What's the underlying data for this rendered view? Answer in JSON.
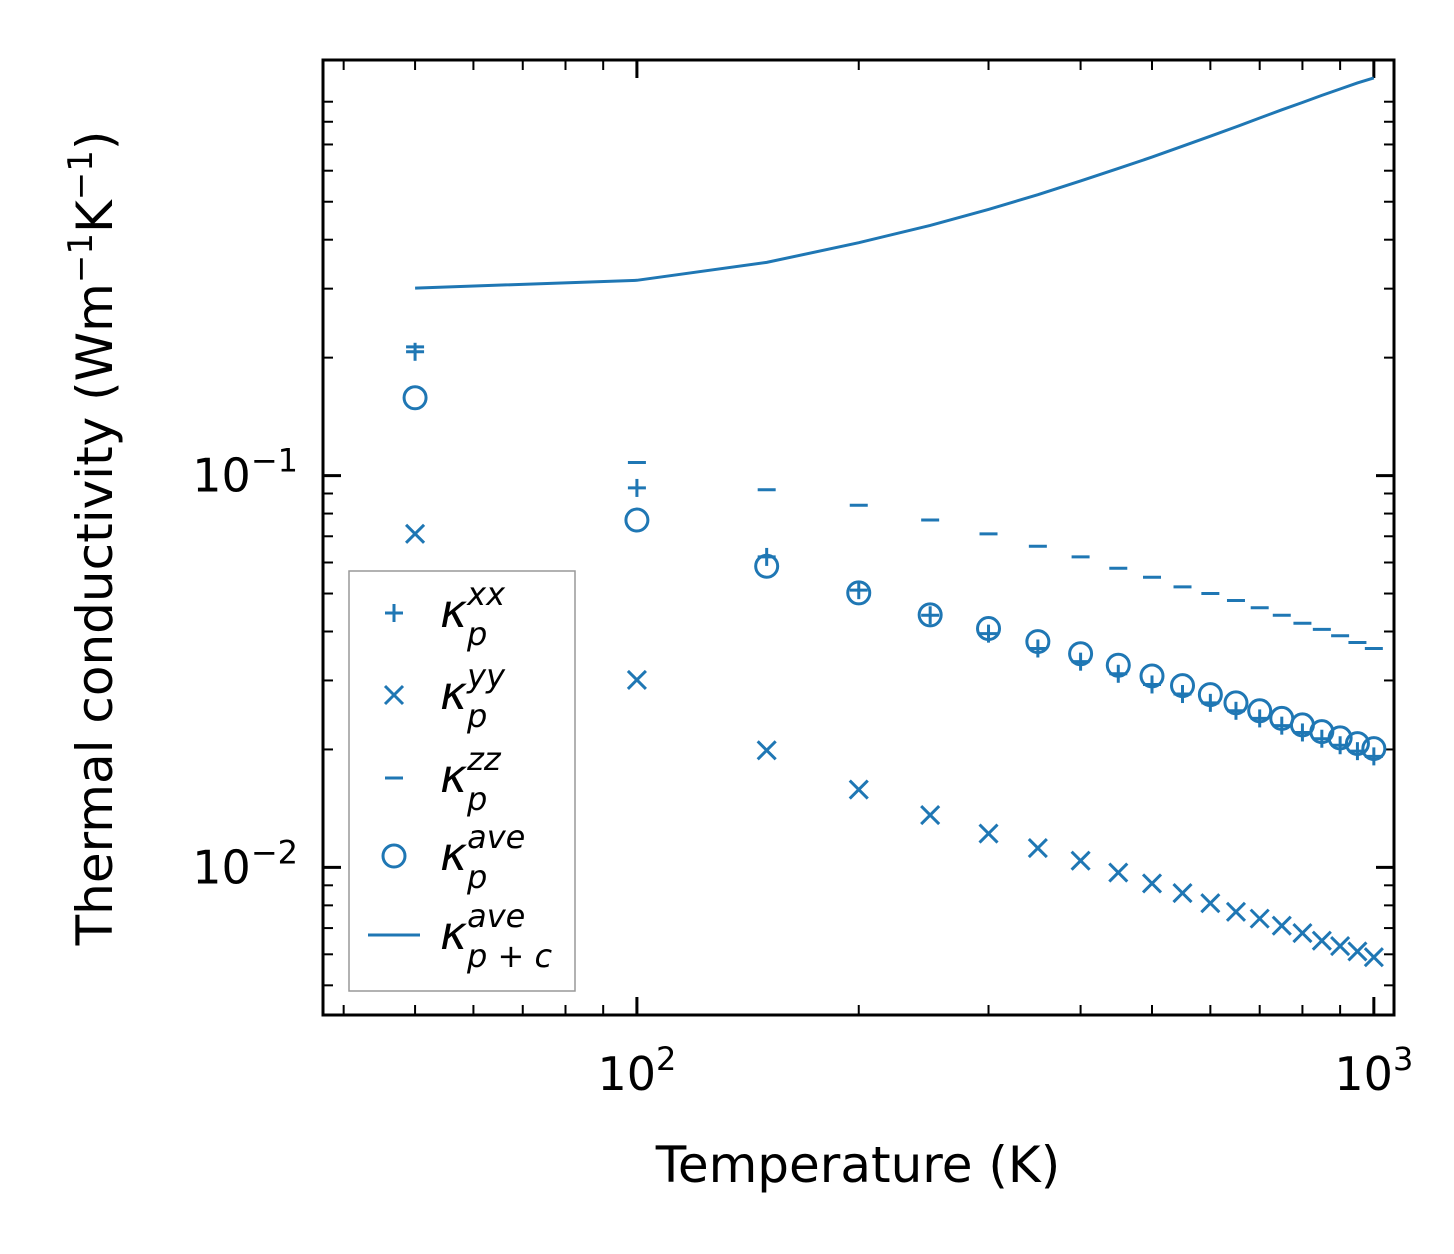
{
  "chart_data": {
    "type": "scatter",
    "title": "",
    "xlabel": "Temperature (K)",
    "ylabel": "Thermal conductivity (Wm",
    "ylabel_unit": {
      "w_exp": "−1",
      "k": "K",
      "k_exp": "−1",
      "close": ")"
    },
    "xscale": "log",
    "yscale": "log",
    "xlim": [
      37.5,
      1065
    ],
    "ylim": [
      0.0042,
      1.15
    ],
    "x_ticks": [
      {
        "value": 100,
        "base": "10",
        "exp": "2"
      },
      {
        "value": 1000,
        "base": "10",
        "exp": "3"
      }
    ],
    "y_ticks": [
      {
        "value": 0.01,
        "base": "10",
        "exp": "−2"
      },
      {
        "value": 0.1,
        "base": "10",
        "exp": "−1"
      }
    ],
    "color": "#1f77b4",
    "legend_position": "lower-left",
    "x": [
      50,
      100,
      150,
      200,
      250,
      300,
      350,
      400,
      450,
      500,
      550,
      600,
      650,
      700,
      750,
      800,
      850,
      900,
      950,
      1000
    ],
    "series": [
      {
        "name": "κ_p^xx",
        "label_base": "κ",
        "label_sup": "xx",
        "label_sub": "p",
        "marker": "plus",
        "values": [
          0.207,
          0.093,
          0.062,
          0.051,
          0.044,
          0.0395,
          0.0362,
          0.0335,
          0.0312,
          0.0293,
          0.0277,
          0.0263,
          0.0251,
          0.024,
          0.023,
          0.0221,
          0.0213,
          0.0205,
          0.0198,
          0.0192
        ]
      },
      {
        "name": "κ_p^yy",
        "label_base": "κ",
        "label_sup": "yy",
        "label_sub": "p",
        "marker": "x",
        "values": [
          0.071,
          0.0301,
          0.0199,
          0.0158,
          0.0136,
          0.0122,
          0.0112,
          0.0104,
          0.0097,
          0.0091,
          0.0086,
          0.0081,
          0.0077,
          0.0074,
          0.0071,
          0.0068,
          0.0065,
          0.0063,
          0.0061,
          0.0059
        ]
      },
      {
        "name": "κ_p^zz",
        "label_base": "κ",
        "label_sup": "zz",
        "label_sub": "p",
        "marker": "hline",
        "values": [
          0.213,
          0.108,
          0.092,
          0.084,
          0.077,
          0.071,
          0.066,
          0.062,
          0.058,
          0.055,
          0.052,
          0.05,
          0.048,
          0.046,
          0.044,
          0.042,
          0.0405,
          0.039,
          0.0375,
          0.0362
        ]
      },
      {
        "name": "κ_p^ave",
        "label_base": "κ",
        "label_sup": "ave",
        "label_sub": "p",
        "marker": "circle",
        "values": [
          0.158,
          0.077,
          0.0587,
          0.0502,
          0.0441,
          0.0407,
          0.0377,
          0.0351,
          0.0328,
          0.0308,
          0.0291,
          0.0276,
          0.0263,
          0.0251,
          0.024,
          0.0231,
          0.0222,
          0.0214,
          0.0207,
          0.0201
        ]
      },
      {
        "name": "κ_p+c^ave",
        "label_base": "κ",
        "label_sup": "ave",
        "label_sub": "p + c",
        "marker": "line",
        "values": [
          0.301,
          0.315,
          0.35,
          0.393,
          0.435,
          0.478,
          0.521,
          0.565,
          0.608,
          0.65,
          0.693,
          0.735,
          0.776,
          0.818,
          0.858,
          0.896,
          0.934,
          0.97,
          1.005,
          1.035
        ]
      }
    ]
  }
}
